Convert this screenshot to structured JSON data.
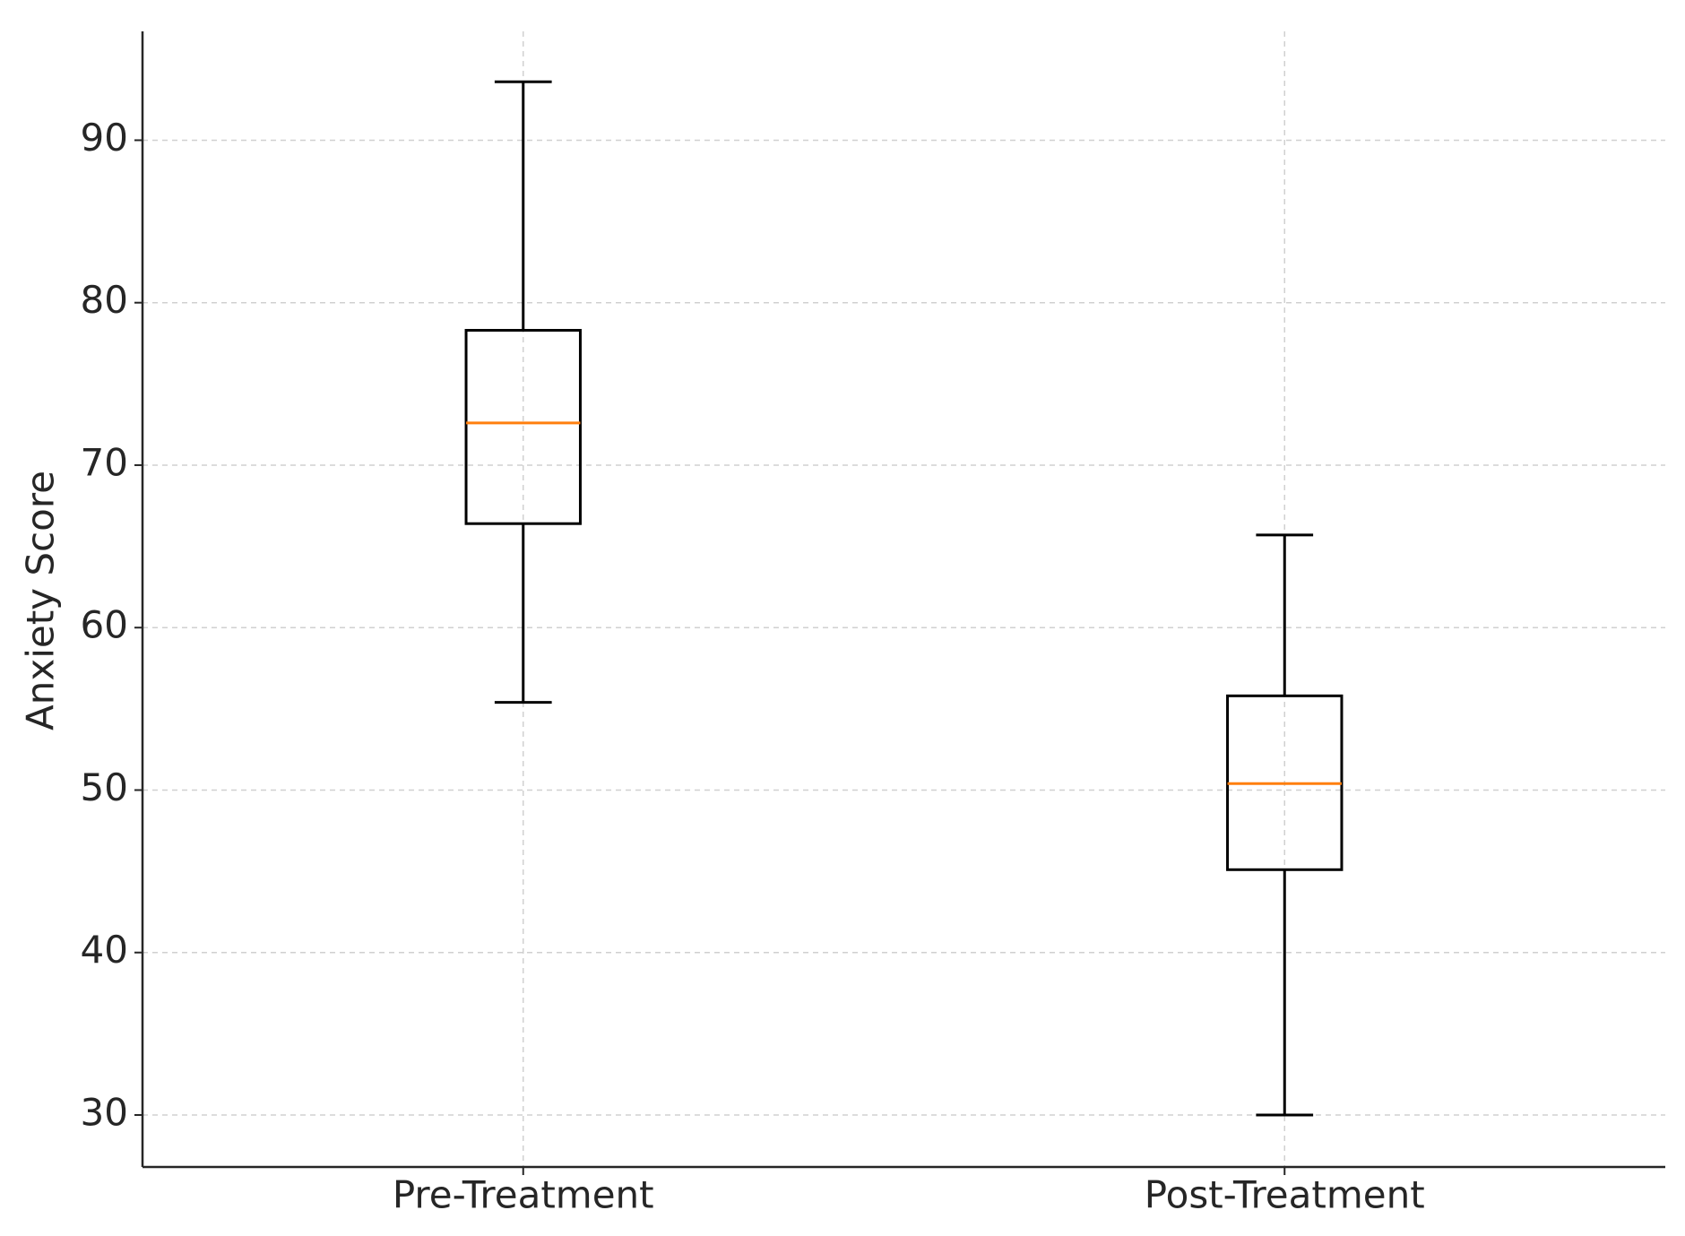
{
  "chart_data": {
    "type": "box",
    "y_label": "Anxiety Score",
    "categories": [
      "Pre-Treatment",
      "Post-Treatment"
    ],
    "boxes": [
      {
        "whislo": 55.4,
        "q1": 66.4,
        "med": 72.6,
        "q3": 78.3,
        "whishi": 93.6
      },
      {
        "whislo": 30,
        "q1": 45.1,
        "med": 50.4,
        "q3": 55.8,
        "whishi": 65.7
      }
    ],
    "box_color": "#000000",
    "median_color": "#ff7f0e",
    "ylim": [
      26.8,
      96.7
    ],
    "yticks": [
      30,
      40,
      50,
      60,
      70,
      80,
      90
    ],
    "grid": true
  }
}
